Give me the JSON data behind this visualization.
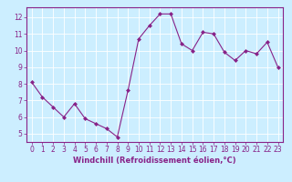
{
  "x": [
    0,
    1,
    2,
    3,
    4,
    5,
    6,
    7,
    8,
    9,
    10,
    11,
    12,
    13,
    14,
    15,
    16,
    17,
    18,
    19,
    20,
    21,
    22,
    23
  ],
  "y": [
    8.1,
    7.2,
    6.6,
    6.0,
    6.8,
    5.9,
    5.6,
    5.3,
    4.8,
    7.6,
    10.7,
    11.5,
    12.2,
    12.2,
    10.4,
    10.0,
    11.1,
    11.0,
    9.9,
    9.4,
    10.0,
    9.8,
    10.5,
    9.0
  ],
  "line_color": "#882288",
  "marker": "D",
  "marker_size": 2,
  "bg_color": "#cceeff",
  "plot_bg_color": "#cceeff",
  "grid_color": "#ffffff",
  "xlabel": "Windchill (Refroidissement éolien,°C)",
  "xlabel_color": "#882288",
  "tick_color": "#882288",
  "spine_color": "#882288",
  "bottom_bar_color": "#882288",
  "ylim": [
    4.5,
    12.6
  ],
  "yticks": [
    5,
    6,
    7,
    8,
    9,
    10,
    11,
    12
  ],
  "xlim": [
    -0.5,
    23.5
  ],
  "xticks": [
    0,
    1,
    2,
    3,
    4,
    5,
    6,
    7,
    8,
    9,
    10,
    11,
    12,
    13,
    14,
    15,
    16,
    17,
    18,
    19,
    20,
    21,
    22,
    23
  ],
  "tick_fontsize": 5.5,
  "xlabel_fontsize": 6.0,
  "linewidth": 0.8
}
